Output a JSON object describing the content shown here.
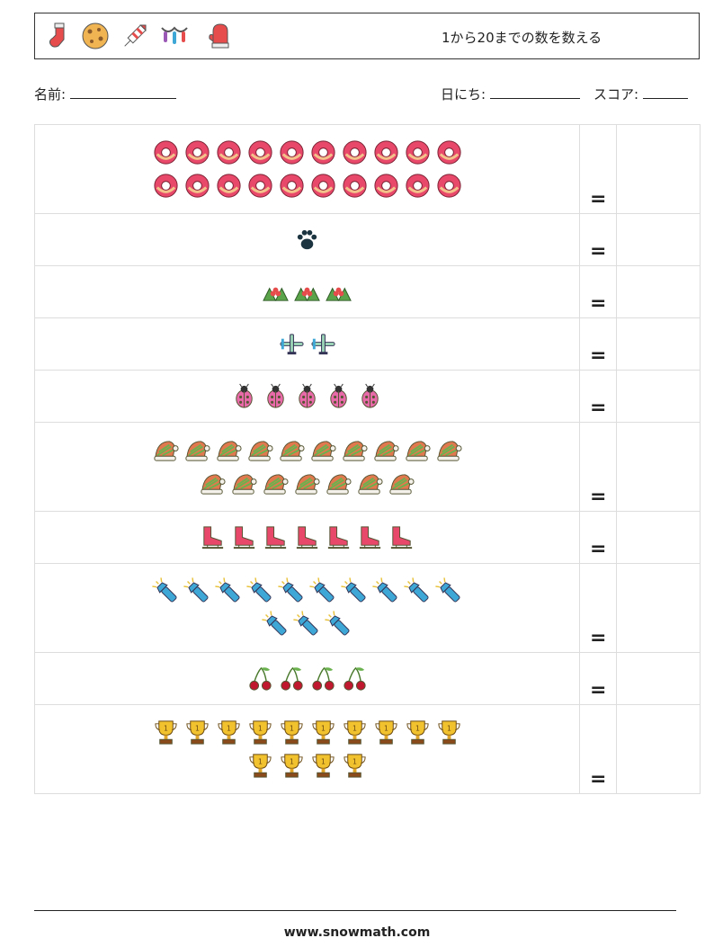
{
  "header": {
    "title": "1から20までの数を数える",
    "icons": [
      "stocking-icon",
      "cookie-icon",
      "firework-rocket-icon",
      "string-lights-icon",
      "mitten-icon"
    ]
  },
  "fields": {
    "name_label": "名前:",
    "date_label": "日にち:",
    "score_label": "スコア:"
  },
  "problems": [
    {
      "icon": "donut-icon",
      "count": 20,
      "equals": "="
    },
    {
      "icon": "paw-print-icon",
      "count": 1,
      "equals": "="
    },
    {
      "icon": "holly-icon",
      "count": 3,
      "equals": "="
    },
    {
      "icon": "airplane-icon",
      "count": 2,
      "equals": "="
    },
    {
      "icon": "ladybug-icon",
      "count": 5,
      "equals": "="
    },
    {
      "icon": "santa-hat-icon",
      "count": 17,
      "equals": "="
    },
    {
      "icon": "ice-skate-icon",
      "count": 7,
      "equals": "="
    },
    {
      "icon": "flashlight-icon",
      "count": 13,
      "equals": "="
    },
    {
      "icon": "cherries-icon",
      "count": 4,
      "equals": "="
    },
    {
      "icon": "trophy-icon",
      "count": 14,
      "equals": "="
    }
  ],
  "footer": {
    "url": "www.snowmath.com"
  }
}
